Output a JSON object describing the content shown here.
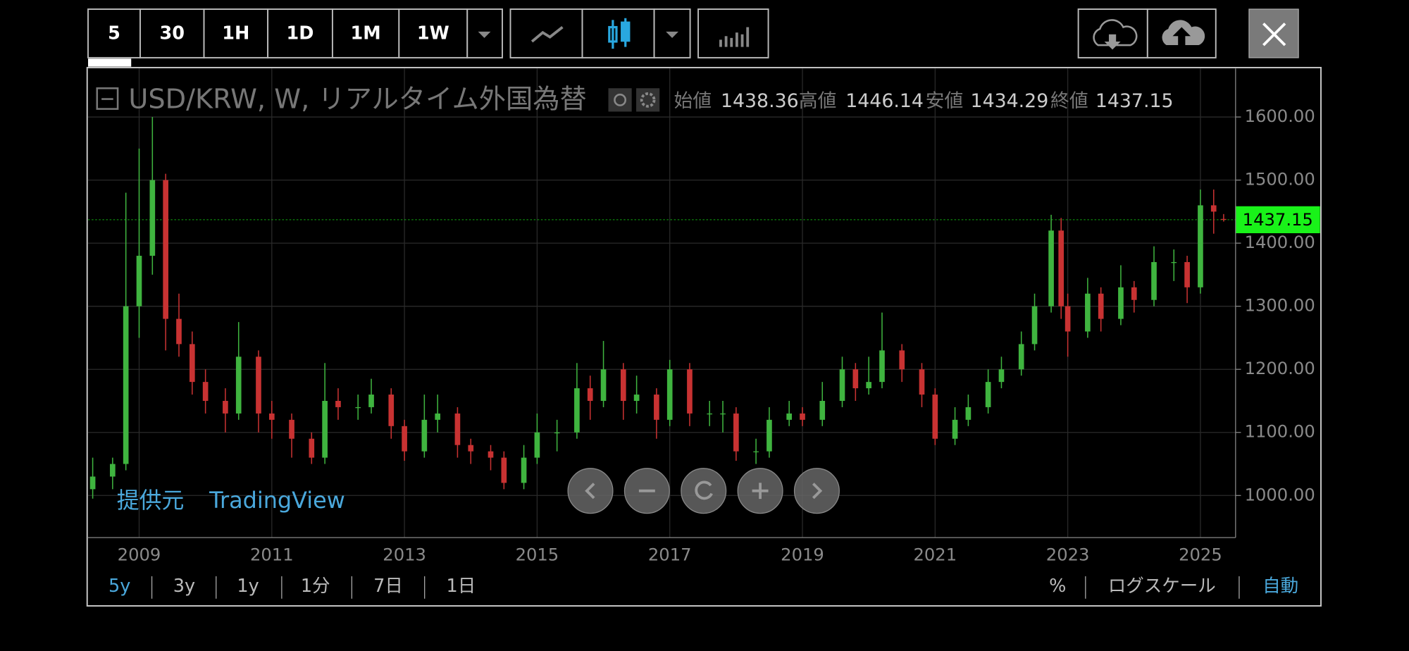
{
  "toolbar": {
    "intervals": [
      "5",
      "30",
      "1H",
      "1D",
      "1M",
      "1W"
    ]
  },
  "header": {
    "symbol": "USD/KRW, W, リアルタイム外国為替",
    "labels": [
      "始値",
      "高値",
      "安値",
      "終値"
    ]
  },
  "watermark": {
    "provider": "提供元",
    "brand": "TradingView"
  },
  "bottom_bar": {
    "ranges": [
      "5y",
      "3y",
      "1y",
      "1分",
      "7日",
      "1日"
    ],
    "options": [
      "%",
      "ログスケール",
      "自動"
    ]
  },
  "chart_data": {
    "type": "candlestick",
    "up_color": "#3fb43f",
    "down_color": "#c83232",
    "last_color": "#19f219",
    "grid": true,
    "x": [
      2008.3,
      2008.6,
      2008.8,
      2009.0,
      2009.2,
      2009.4,
      2009.6,
      2009.8,
      2010.0,
      2010.3,
      2010.5,
      2010.8,
      2011.0,
      2011.3,
      2011.6,
      2011.8,
      2012.0,
      2012.3,
      2012.5,
      2012.8,
      2013.0,
      2013.3,
      2013.5,
      2013.8,
      2014.0,
      2014.3,
      2014.5,
      2014.8,
      2015.0,
      2015.3,
      2015.6,
      2015.8,
      2016.0,
      2016.3,
      2016.5,
      2016.8,
      2017.0,
      2017.3,
      2017.6,
      2017.8,
      2018.0,
      2018.3,
      2018.5,
      2018.8,
      2019.0,
      2019.3,
      2019.6,
      2019.8,
      2020.0,
      2020.2,
      2020.5,
      2020.8,
      2021.0,
      2021.3,
      2021.5,
      2021.8,
      2022.0,
      2022.3,
      2022.5,
      2022.75,
      2022.9,
      2023.0,
      2023.3,
      2023.5,
      2023.8,
      2024.0,
      2024.3,
      2024.6,
      2024.8,
      2025.0,
      2025.2,
      2025.35
    ],
    "open": [
      1010,
      1030,
      1050,
      1300,
      1380,
      1500,
      1280,
      1240,
      1180,
      1150,
      1130,
      1220,
      1130,
      1120,
      1090,
      1060,
      1150,
      1140,
      1140,
      1160,
      1110,
      1070,
      1120,
      1130,
      1080,
      1070,
      1060,
      1020,
      1060,
      1100,
      1100,
      1170,
      1150,
      1200,
      1150,
      1160,
      1120,
      1200,
      1130,
      1130,
      1130,
      1070,
      1070,
      1120,
      1130,
      1120,
      1150,
      1200,
      1170,
      1180,
      1230,
      1200,
      1160,
      1090,
      1120,
      1140,
      1180,
      1200,
      1240,
      1300,
      1420,
      1300,
      1260,
      1320,
      1280,
      1330,
      1310,
      1370,
      1370,
      1330,
      1460,
      1438.36
    ],
    "high": [
      1060,
      1060,
      1480,
      1550,
      1600,
      1510,
      1320,
      1260,
      1200,
      1170,
      1275,
      1230,
      1150,
      1130,
      1100,
      1210,
      1170,
      1160,
      1185,
      1170,
      1120,
      1160,
      1160,
      1140,
      1090,
      1080,
      1070,
      1080,
      1130,
      1120,
      1210,
      1190,
      1245,
      1210,
      1190,
      1170,
      1215,
      1210,
      1150,
      1150,
      1140,
      1090,
      1140,
      1150,
      1140,
      1180,
      1220,
      1210,
      1220,
      1290,
      1240,
      1210,
      1170,
      1140,
      1160,
      1200,
      1220,
      1260,
      1320,
      1445,
      1440,
      1320,
      1345,
      1330,
      1365,
      1340,
      1395,
      1390,
      1380,
      1485,
      1485,
      1446.14
    ],
    "low": [
      995,
      1010,
      1040,
      1250,
      1350,
      1230,
      1220,
      1160,
      1130,
      1100,
      1120,
      1100,
      1090,
      1060,
      1050,
      1050,
      1120,
      1120,
      1130,
      1090,
      1055,
      1060,
      1100,
      1060,
      1050,
      1040,
      1010,
      1010,
      1050,
      1070,
      1090,
      1120,
      1140,
      1120,
      1130,
      1090,
      1110,
      1110,
      1110,
      1100,
      1055,
      1050,
      1060,
      1110,
      1110,
      1110,
      1140,
      1150,
      1160,
      1170,
      1180,
      1140,
      1080,
      1080,
      1110,
      1130,
      1170,
      1190,
      1230,
      1290,
      1280,
      1220,
      1250,
      1260,
      1270,
      1290,
      1300,
      1340,
      1305,
      1320,
      1415,
      1434.29
    ],
    "close": [
      1030,
      1050,
      1300,
      1380,
      1500,
      1280,
      1240,
      1180,
      1150,
      1130,
      1220,
      1130,
      1120,
      1090,
      1060,
      1150,
      1140,
      1140,
      1160,
      1110,
      1070,
      1120,
      1130,
      1080,
      1070,
      1060,
      1020,
      1060,
      1100,
      1100,
      1170,
      1150,
      1200,
      1150,
      1160,
      1120,
      1200,
      1130,
      1130,
      1130,
      1070,
      1070,
      1120,
      1130,
      1120,
      1150,
      1200,
      1170,
      1180,
      1230,
      1200,
      1160,
      1090,
      1120,
      1140,
      1180,
      1200,
      1240,
      1300,
      1420,
      1300,
      1260,
      1320,
      1280,
      1330,
      1310,
      1370,
      1370,
      1330,
      1460,
      1450,
      1437.15
    ],
    "xlim": [
      2008.23,
      2025.53
    ],
    "ylim": [
      933.3,
      1676.9
    ],
    "xticks": [
      2009,
      2011,
      2013,
      2015,
      2017,
      2019,
      2021,
      2023,
      2025
    ],
    "yticks": [
      {
        "value": 1000,
        "label": "1000.00"
      },
      {
        "value": 1100,
        "label": "1100.00"
      },
      {
        "value": 1200,
        "label": "1200.00"
      },
      {
        "value": 1300,
        "label": "1300.00"
      },
      {
        "value": 1400,
        "label": "1400.00"
      },
      {
        "value": 1500,
        "label": "1500.00"
      },
      {
        "value": 1600,
        "label": "1600.00"
      }
    ]
  }
}
